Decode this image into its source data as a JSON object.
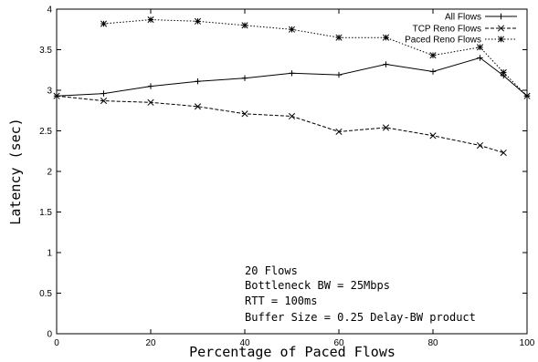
{
  "chart_data": {
    "type": "line",
    "xlabel": "Percentage of Paced Flows",
    "ylabel": "Latency (sec)",
    "xlim": [
      0,
      100
    ],
    "ylim": [
      0,
      4
    ],
    "x_ticks": [
      "0",
      "20",
      "40",
      "60",
      "80",
      "100"
    ],
    "y_ticks": [
      "0",
      "0.5",
      "1",
      "1.5",
      "2",
      "2.5",
      "3",
      "3.5",
      "4"
    ],
    "legend_position": "top-right",
    "grid": false,
    "series": [
      {
        "name": "All Flows",
        "line_style": "solid",
        "marker": "plus",
        "x": [
          0,
          10,
          20,
          30,
          40,
          50,
          60,
          70,
          80,
          90,
          95,
          100
        ],
        "values": [
          2.93,
          2.96,
          3.05,
          3.11,
          3.15,
          3.21,
          3.19,
          3.32,
          3.23,
          3.4,
          3.18,
          2.93
        ]
      },
      {
        "name": "TCP Reno Flows",
        "line_style": "dashed",
        "marker": "x",
        "x": [
          0,
          10,
          20,
          30,
          40,
          50,
          60,
          70,
          80,
          90,
          95
        ],
        "values": [
          2.93,
          2.87,
          2.85,
          2.8,
          2.71,
          2.68,
          2.49,
          2.54,
          2.44,
          2.32,
          2.23
        ]
      },
      {
        "name": "Paced Reno Flows",
        "line_style": "dotted",
        "marker": "star",
        "x": [
          10,
          20,
          30,
          40,
          50,
          60,
          70,
          80,
          90,
          95,
          100
        ],
        "values": [
          3.82,
          3.87,
          3.85,
          3.8,
          3.75,
          3.65,
          3.65,
          3.43,
          3.53,
          3.22,
          2.93
        ]
      }
    ],
    "annotations": [
      "20 Flows",
      "Bottleneck BW = 25Mbps",
      "RTT = 100ms",
      "Buffer Size = 0.25 Delay-BW product"
    ]
  }
}
